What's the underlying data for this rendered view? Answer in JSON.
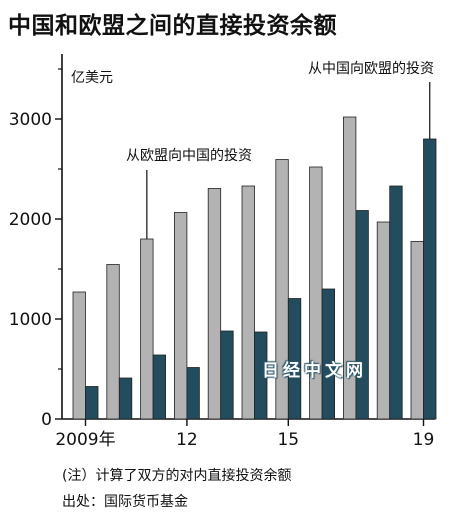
{
  "title": "中国和欧盟之间的直接投资余额",
  "note": "(注）计算了双方的对内直接投资余额",
  "source": "出处：国际货币基金",
  "watermark": "日经中文网",
  "colors": {
    "eu_to_china": "#b3b3b3",
    "china_to_eu": "#234d5e",
    "axis": "#111111"
  },
  "chart_data": {
    "type": "bar",
    "title": "中国和欧盟之间的直接投资余额",
    "ylabel": "亿美元",
    "xlabel": "",
    "ylim": [
      0,
      3500
    ],
    "yticks": [
      0,
      1000,
      2000,
      3000
    ],
    "categories": [
      "2009",
      "2010",
      "2011",
      "2012",
      "2013",
      "2014",
      "2015",
      "2016",
      "2017",
      "2018",
      "2019"
    ],
    "xtick_labels": [
      {
        "category": "2009",
        "label": "2009年"
      },
      {
        "category": "2012",
        "label": "12"
      },
      {
        "category": "2015",
        "label": "15"
      },
      {
        "category": "2019",
        "label": "19"
      }
    ],
    "series": [
      {
        "name": "从欧盟向中国的投资",
        "color": "#b3b3b3",
        "values": [
          1270,
          1545,
          1800,
          2065,
          2305,
          2330,
          2595,
          2520,
          3020,
          1970,
          1775
        ]
      },
      {
        "name": "从中国向欧盟的投资",
        "color": "#234d5e",
        "values": [
          325,
          410,
          640,
          515,
          880,
          870,
          1205,
          1300,
          2085,
          2330,
          2800
        ]
      }
    ],
    "annotations": [
      {
        "text": "从欧盟向中国的投资",
        "series": "从欧盟向中国的投资",
        "category": "2011"
      },
      {
        "text": "从中国向欧盟的投资",
        "series": "从中国向欧盟的投资",
        "category": "2019"
      }
    ],
    "grid": false,
    "legend": "none"
  }
}
